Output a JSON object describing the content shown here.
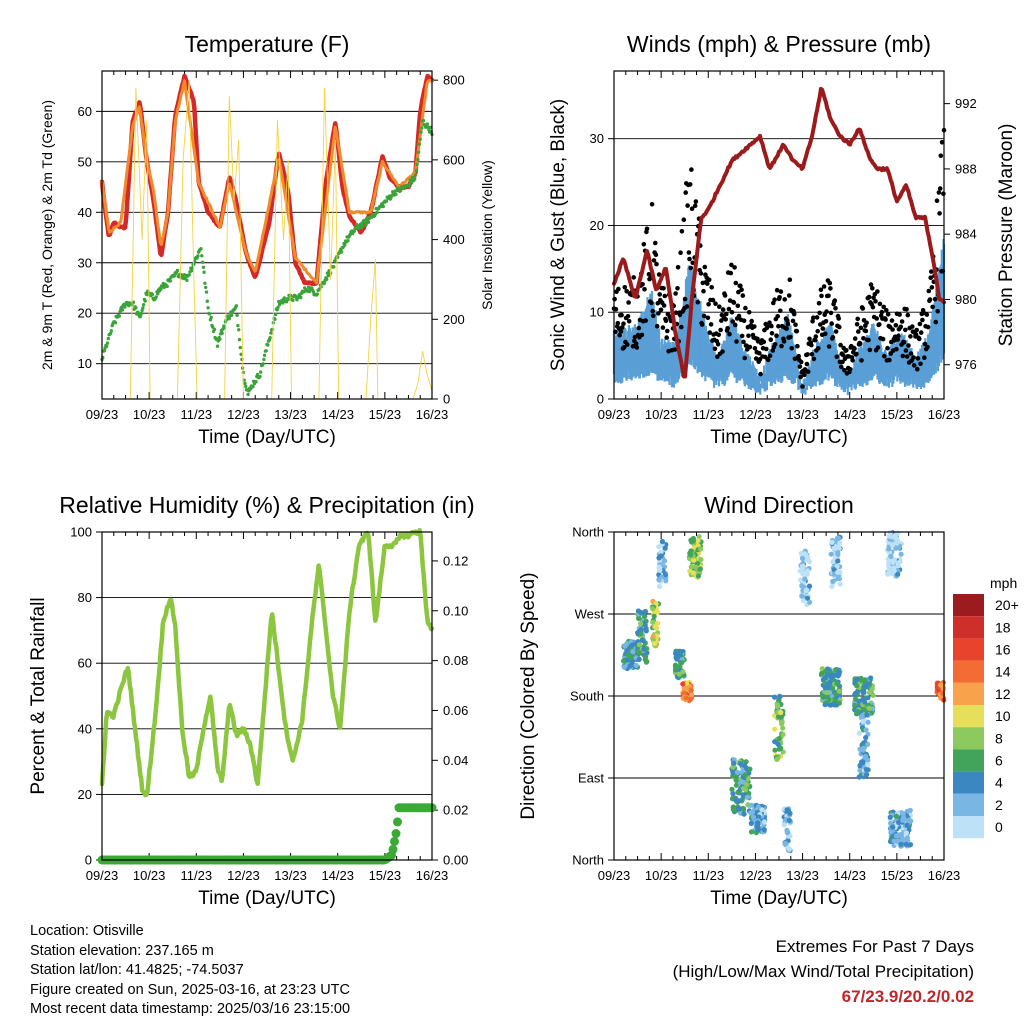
{
  "chart_data": [
    {
      "type": "line",
      "id": "temperature",
      "title": "Temperature (F)",
      "xlabel": "Time (Day/UTC)",
      "ylabel": "2m & 9m T (Red, Orange) & 2m Td (Green)",
      "ylabel_right": "Solar Insolation (Yellow)",
      "x_ticks": [
        "09/23",
        "10/23",
        "11/23",
        "12/23",
        "13/23",
        "14/23",
        "15/23",
        "16/23"
      ],
      "xlim": [
        0,
        7
      ],
      "ylim": [
        3,
        68
      ],
      "ylim_right": [
        0,
        823
      ],
      "y_ticks": [
        10,
        20,
        30,
        40,
        50,
        60
      ],
      "y_ticks_right": [
        0,
        200,
        400,
        600,
        800
      ],
      "series": [
        {
          "name": "2m T",
          "color": "#d42a27",
          "x": [
            0,
            0.06,
            0.15,
            0.25,
            0.4,
            0.5,
            0.65,
            0.8,
            0.95,
            1.1,
            1.25,
            1.4,
            1.55,
            1.75,
            1.95,
            2.05,
            2.25,
            2.5,
            2.7,
            2.85,
            3.05,
            3.25,
            3.55,
            3.75,
            3.95,
            4.1,
            4.3,
            4.55,
            4.75,
            4.95,
            5.1,
            5.25,
            5.5,
            5.7,
            5.95,
            6.1,
            6.3,
            6.5,
            6.65,
            6.75,
            6.9,
            7
          ],
          "y": [
            46,
            41,
            35,
            38,
            37,
            37,
            58,
            62,
            50,
            42,
            31,
            40,
            59,
            67,
            62,
            46,
            40,
            37,
            47,
            42,
            32,
            27,
            38,
            52,
            44,
            30,
            26,
            26,
            46,
            58,
            45,
            39,
            36,
            40,
            51,
            47,
            45,
            45,
            48,
            60,
            67,
            66
          ]
        },
        {
          "name": "9m T",
          "color": "#f08a2c",
          "x": [
            0,
            0.15,
            0.4,
            0.65,
            0.8,
            0.95,
            1.1,
            1.25,
            1.4,
            1.55,
            1.75,
            2.05,
            2.5,
            2.7,
            3.05,
            3.25,
            3.75,
            4.1,
            4.55,
            4.95,
            5.25,
            5.7,
            5.95,
            6.3,
            6.65,
            6.9,
            7
          ],
          "y": [
            46,
            36,
            38,
            57,
            61,
            50,
            44,
            33,
            40,
            58,
            66,
            46,
            37,
            46,
            32,
            28,
            51,
            31,
            26,
            57,
            40,
            40,
            50,
            45,
            48,
            66,
            66
          ]
        },
        {
          "name": "2m Td",
          "color": "#3aa33a",
          "x": [
            0,
            0.25,
            0.5,
            0.65,
            0.8,
            0.95,
            1.1,
            1.25,
            1.4,
            1.6,
            1.8,
            1.95,
            2.1,
            2.25,
            2.45,
            2.65,
            2.85,
            3.0,
            3.1,
            3.2,
            3.35,
            3.55,
            3.75,
            3.95,
            4.15,
            4.35,
            4.55,
            4.75,
            4.95,
            5.15,
            5.4,
            5.6,
            5.8,
            6.0,
            6.2,
            6.45,
            6.65,
            6.8,
            6.9,
            7
          ],
          "y": [
            11,
            18,
            22,
            22,
            19,
            24,
            23,
            25,
            26,
            28,
            27,
            30,
            33,
            21,
            14,
            19,
            21,
            8,
            4,
            6,
            8,
            15,
            22,
            23,
            23,
            25,
            24,
            27,
            30,
            34,
            37,
            38,
            40,
            42,
            44,
            45,
            47,
            58,
            57,
            56
          ]
        },
        {
          "name": "Solar Insolation",
          "color": "#f5d342",
          "axis": "right",
          "x": [
            0,
            0.6,
            0.72,
            0.85,
            0.95,
            1.02,
            1.6,
            1.72,
            1.85,
            1.95,
            2.02,
            2.6,
            2.7,
            2.8,
            2.9,
            3.0,
            3.05,
            3.6,
            3.72,
            3.85,
            3.95,
            4.02,
            4.6,
            4.72,
            4.85,
            4.95,
            5.02,
            5.6,
            5.7,
            5.8,
            5.85,
            6.6,
            6.7,
            6.8,
            6.9,
            7
          ],
          "y": [
            0,
            0,
            780,
            400,
            700,
            0,
            0,
            600,
            800,
            300,
            0,
            0,
            760,
            500,
            650,
            0,
            0,
            0,
            700,
            400,
            600,
            0,
            0,
            780,
            300,
            650,
            0,
            0,
            200,
            350,
            0,
            0,
            40,
            120,
            60,
            20
          ]
        }
      ]
    },
    {
      "type": "scatter",
      "id": "winds",
      "title": "Winds (mph) & Pressure (mb)",
      "xlabel": "Time (Day/UTC)",
      "ylabel": "Sonic Wind & Gust (Blue, Black)",
      "ylabel_right": "Station Pressure (Maroon)",
      "x_ticks": [
        "09/23",
        "10/23",
        "11/23",
        "12/23",
        "13/23",
        "14/23",
        "15/23",
        "16/23"
      ],
      "xlim": [
        0,
        7
      ],
      "ylim": [
        0,
        37.8
      ],
      "ylim_right": [
        973.9,
        994.0
      ],
      "y_ticks": [
        0,
        10,
        20,
        30
      ],
      "y_ticks_right": [
        976,
        980,
        984,
        988,
        992
      ],
      "gust_envelope": {
        "x": [
          0,
          0.5,
          0.8,
          1.0,
          1.3,
          1.6,
          1.9,
          2.2,
          2.5,
          2.8,
          3.1,
          3.4,
          3.7,
          4.0,
          4.3,
          4.6,
          4.9,
          5.2,
          5.5,
          5.8,
          6.1,
          6.4,
          6.7,
          7
        ],
        "y": [
          12,
          13,
          21,
          12,
          11,
          26,
          16,
          9,
          15,
          10,
          6,
          11,
          14,
          3,
          11,
          13,
          5,
          9,
          13,
          9,
          11,
          7,
          12,
          30
        ]
      },
      "wind_envelope": {
        "x": [
          0,
          0.5,
          0.8,
          1.0,
          1.3,
          1.6,
          1.9,
          2.2,
          2.5,
          2.8,
          3.1,
          3.4,
          3.7,
          4.0,
          4.3,
          4.6,
          4.9,
          5.2,
          5.5,
          5.8,
          6.1,
          6.4,
          6.7,
          7
        ],
        "y": [
          7,
          8,
          12,
          6,
          6,
          15,
          9,
          4,
          9,
          5,
          2,
          6,
          9,
          1,
          6,
          8,
          2,
          5,
          8,
          5,
          7,
          4,
          7,
          18
        ]
      },
      "series": [
        {
          "name": "Station Pressure",
          "color": "#9b1a1c",
          "axis": "right",
          "type": "line",
          "x": [
            0,
            0.2,
            0.45,
            0.7,
            0.9,
            1.1,
            1.3,
            1.5,
            1.65,
            1.85,
            2.0,
            2.25,
            2.5,
            2.7,
            2.9,
            3.1,
            3.3,
            3.6,
            3.8,
            4.0,
            4.2,
            4.4,
            4.6,
            4.8,
            5.0,
            5.2,
            5.45,
            5.6,
            5.8,
            6.0,
            6.2,
            6.4,
            6.6,
            6.8,
            6.9,
            7
          ],
          "y": [
            981,
            982.5,
            980,
            983,
            980.5,
            982,
            978,
            975,
            980,
            985,
            985.5,
            987,
            988.5,
            989,
            989.5,
            990,
            988,
            989.5,
            988.5,
            988,
            990,
            993,
            991,
            990,
            989.5,
            990.5,
            988.5,
            988,
            988,
            986,
            987,
            985,
            985,
            982,
            980,
            979.8
          ]
        }
      ]
    },
    {
      "type": "line",
      "id": "humidity",
      "title": "Relative Humidity (%) & Precipitation (in)",
      "xlabel": "Time (Day/UTC)",
      "ylabel": "Percent & Total Rainfall",
      "x_ticks": [
        "09/23",
        "10/23",
        "11/23",
        "12/23",
        "13/23",
        "14/23",
        "15/23",
        "16/23"
      ],
      "xlim": [
        0,
        7
      ],
      "ylim": [
        0,
        100
      ],
      "ylim_right": [
        0,
        0.1316
      ],
      "y_ticks": [
        0,
        20,
        40,
        60,
        80,
        100
      ],
      "y_ticks_right": [
        0.0,
        0.02,
        0.04,
        0.06,
        0.08,
        0.1,
        0.12
      ],
      "series": [
        {
          "name": "Relative Humidity",
          "color": "#8cc63f",
          "x": [
            0,
            0.1,
            0.25,
            0.4,
            0.55,
            0.7,
            0.85,
            0.95,
            1.15,
            1.3,
            1.45,
            1.55,
            1.7,
            1.85,
            2.0,
            2.15,
            2.3,
            2.45,
            2.55,
            2.7,
            2.85,
            3.0,
            3.15,
            3.3,
            3.45,
            3.6,
            3.75,
            3.9,
            4.05,
            4.25,
            4.45,
            4.6,
            4.75,
            4.9,
            5.05,
            5.25,
            5.45,
            5.65,
            5.8,
            6.0,
            6.2,
            6.35,
            6.5,
            6.65,
            6.75,
            6.9,
            7
          ],
          "y": [
            23,
            45,
            44,
            52,
            59,
            40,
            22,
            19,
            47,
            73,
            80,
            72,
            40,
            25,
            27,
            40,
            50,
            28,
            24,
            48,
            38,
            40,
            35,
            23,
            49,
            76,
            58,
            40,
            30,
            43,
            72,
            90,
            70,
            50,
            40,
            76,
            96,
            100,
            72,
            96,
            96,
            99,
            99,
            100,
            100,
            73,
            70
          ]
        },
        {
          "name": "Total Precipitation",
          "color": "#3aaa35",
          "axis": "right",
          "x": [
            0,
            6.0,
            6.15,
            6.25,
            6.3,
            7
          ],
          "y": [
            0,
            0,
            0.002,
            0.012,
            0.021,
            0.021
          ]
        }
      ]
    },
    {
      "type": "scatter",
      "id": "wind_direction",
      "title": "Wind Direction",
      "xlabel": "Time (Day/UTC)",
      "ylabel": "Direction (Colored By Speed)",
      "x_ticks": [
        "09/23",
        "10/23",
        "11/23",
        "12/23",
        "13/23",
        "14/23",
        "15/23",
        "16/23"
      ],
      "xlim": [
        0,
        7
      ],
      "y_ticks": [
        "North",
        "West",
        "South",
        "East",
        "North"
      ],
      "y_tick_degrees": [
        360,
        270,
        180,
        90,
        0
      ],
      "legend_title": "mph",
      "legend_labels": [
        "20+",
        "18",
        "16",
        "14",
        "12",
        "10",
        "8",
        "6",
        "4",
        "2",
        "0"
      ],
      "legend_colors": [
        "#9b1b1e",
        "#cf2f2a",
        "#e8432c",
        "#f26c33",
        "#f8a34c",
        "#e6df5a",
        "#8cc95e",
        "#42a45b",
        "#3a87c2",
        "#79b6e3",
        "#bde1f6"
      ],
      "clusters": [
        {
          "x": 0.2,
          "x2": 0.5,
          "d": [
            210,
            240
          ],
          "s": 4
        },
        {
          "x": 0.5,
          "x2": 0.7,
          "d": [
            215,
            275
          ],
          "s": 5
        },
        {
          "x": 0.8,
          "x2": 0.95,
          "d": [
            235,
            285
          ],
          "s": 9
        },
        {
          "x": 0.95,
          "x2": 1.1,
          "d": [
            300,
            350
          ],
          "s": 2
        },
        {
          "x": 1.3,
          "x2": 1.5,
          "d": [
            200,
            230
          ],
          "s": 5
        },
        {
          "x": 1.45,
          "x2": 1.65,
          "d": [
            175,
            195
          ],
          "s": 13
        },
        {
          "x": 1.6,
          "x2": 1.85,
          "d": [
            310,
            355
          ],
          "s": 8
        },
        {
          "x": 2.5,
          "x2": 2.9,
          "d": [
            50,
            110
          ],
          "s": 5
        },
        {
          "x": 2.9,
          "x2": 3.2,
          "d": [
            30,
            60
          ],
          "s": 3
        },
        {
          "x": 3.4,
          "x2": 3.6,
          "d": [
            110,
            180
          ],
          "s": 7
        },
        {
          "x": 3.6,
          "x2": 3.75,
          "d": [
            10,
            60
          ],
          "s": 2
        },
        {
          "x": 3.95,
          "x2": 4.15,
          "d": [
            280,
            340
          ],
          "s": 1
        },
        {
          "x": 4.4,
          "x2": 4.8,
          "d": [
            170,
            210
          ],
          "s": 5
        },
        {
          "x": 4.6,
          "x2": 4.8,
          "d": [
            300,
            355
          ],
          "s": 1
        },
        {
          "x": 5.1,
          "x2": 5.5,
          "d": [
            160,
            200
          ],
          "s": 5
        },
        {
          "x": 5.2,
          "x2": 5.4,
          "d": [
            90,
            160
          ],
          "s": 3
        },
        {
          "x": 5.8,
          "x2": 6.1,
          "d": [
            310,
            360
          ],
          "s": 1
        },
        {
          "x": 5.85,
          "x2": 6.3,
          "d": [
            15,
            55
          ],
          "s": 3
        },
        {
          "x": 6.85,
          "x2": 7.0,
          "d": [
            175,
            195
          ],
          "s": 14
        }
      ]
    }
  ],
  "info": {
    "location": "Location: Otisville",
    "elevation": "Station elevation: 237.165 m",
    "latlon": "Station lat/lon: 41.4825; -74.5037",
    "created": "Figure created on Sun, 2025-03-16, at 23:23 UTC",
    "recent": "Most recent data timestamp: 2025/03/16 23:15:00"
  },
  "extremes": {
    "title": "Extremes For Past 7 Days",
    "subtitle": "(High/Low/Max Wind/Total Precipitation)",
    "values": "67/23.9/20.2/0.02"
  }
}
